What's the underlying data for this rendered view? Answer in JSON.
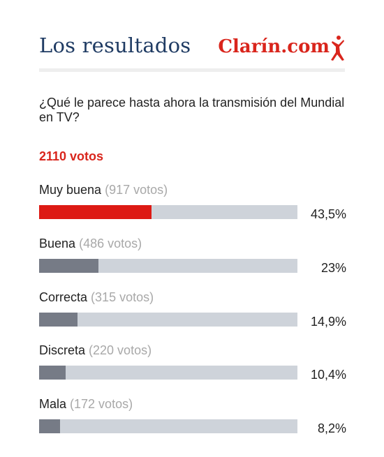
{
  "header": {
    "title": "Los resultados",
    "brand": "Clarín.com"
  },
  "poll": {
    "question": "¿Qué le parece hasta ahora la transmisión del Mundial en TV?",
    "total": "2110 votos",
    "options": [
      {
        "label": "Muy buena",
        "votes": "(917 votos)",
        "percent": "43,5%",
        "fraction": 0.435,
        "leading": true
      },
      {
        "label": "Buena",
        "votes": "(486 votos)",
        "percent": "23%",
        "fraction": 0.23,
        "leading": false
      },
      {
        "label": "Correcta",
        "votes": "(315 votos)",
        "percent": "14,9%",
        "fraction": 0.149,
        "leading": false
      },
      {
        "label": "Discreta",
        "votes": "(220 votos)",
        "percent": "10,4%",
        "fraction": 0.104,
        "leading": false
      },
      {
        "label": "Mala",
        "votes": "(172 votos)",
        "percent": "8,2%",
        "fraction": 0.082,
        "leading": false
      }
    ]
  },
  "colors": {
    "title": "#1f3b63",
    "brand": "#d9251c",
    "total": "#d9251c",
    "leading_bar": "#dd1a14",
    "bar": "#767b86",
    "track": "#ced3da",
    "votes_text": "#a8a8a8"
  },
  "icons": {
    "brand_mark": "clarin-figure-icon"
  }
}
